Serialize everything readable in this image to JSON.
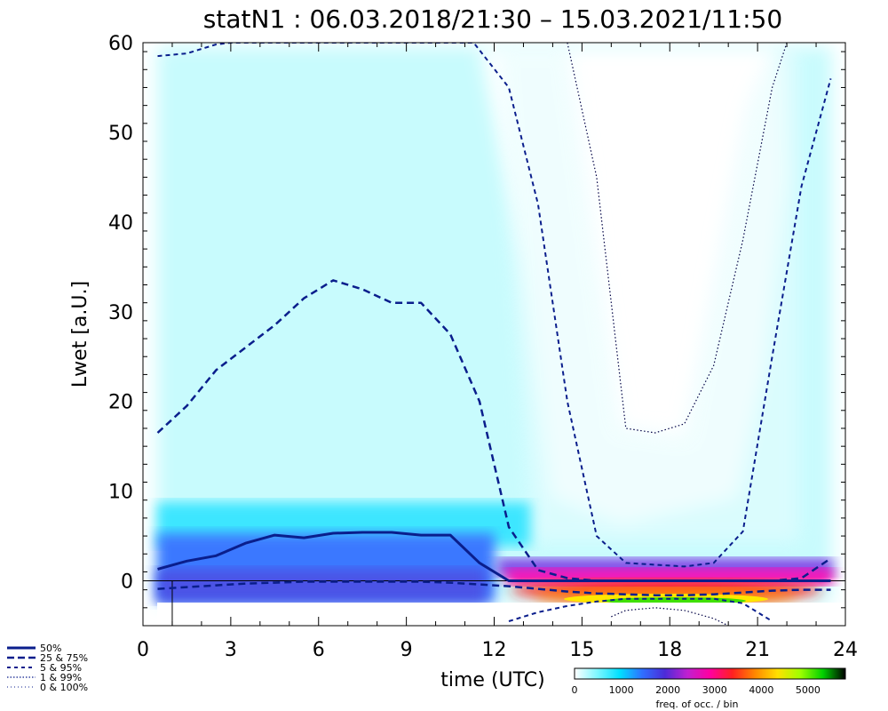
{
  "chart_data": {
    "type": "heatmap",
    "title": "statN1 : 06.03.2018/21:30 – 15.03.2021/11:50",
    "xlabel": "time (UTC)",
    "ylabel": "Lwet [a.U.]",
    "xlim": [
      0,
      24
    ],
    "ylim": [
      -5,
      60
    ],
    "x_ticks": [
      "0",
      "3",
      "6",
      "9",
      "12",
      "15",
      "18",
      "21",
      "24"
    ],
    "y_ticks": [
      "0",
      "10",
      "20",
      "30",
      "40",
      "50",
      "60"
    ],
    "colorbar": {
      "label": "freq. of occ. / bin",
      "ticks": [
        "0",
        "1000",
        "2000",
        "3000",
        "4000",
        "5000"
      ],
      "range": [
        0,
        5800
      ],
      "colors": [
        "#ffffff",
        "#7ff7ff",
        "#00e0ff",
        "#2f6fff",
        "#4b2bd8",
        "#c020d0",
        "#ff00a0",
        "#ff2020",
        "#ff8800",
        "#ffe000",
        "#a0ff00",
        "#00d000",
        "#000000"
      ]
    },
    "legend": {
      "placement": "bottom-left",
      "entries": [
        "50%",
        "25 &  75%",
        " 5 &  95%",
        " 1 &  99%",
        " 0 & 100%"
      ]
    },
    "series": [
      {
        "name": "50%",
        "x": [
          0.5,
          1.5,
          2.5,
          3.5,
          4.5,
          5.5,
          6.5,
          7.5,
          8.5,
          9.5,
          10.5,
          11.5,
          12.5,
          13.5,
          14.5,
          15.5,
          16.5,
          17.5,
          18.5,
          19.5,
          20.5,
          21.5,
          22.5,
          23.5
        ],
        "values": [
          1.3,
          2.2,
          2.8,
          4.2,
          5.1,
          4.8,
          5.3,
          5.4,
          5.4,
          5.1,
          5.1,
          2.0,
          0.0,
          0.0,
          0.0,
          0.0,
          0.0,
          0.0,
          0.0,
          0.0,
          0.0,
          0.0,
          0.0,
          0.0
        ]
      },
      {
        "name": "25%",
        "x": [
          0.5,
          1.5,
          2.5,
          3.5,
          4.5,
          5.5,
          6.5,
          7.5,
          8.5,
          9.5,
          10.5,
          11.5,
          12.5,
          13.5,
          14.5,
          15.5,
          16.5,
          17.5,
          18.5,
          19.5,
          20.5,
          21.5,
          22.5,
          23.5
        ],
        "values": [
          -0.9,
          -0.7,
          -0.5,
          -0.3,
          -0.2,
          -0.1,
          -0.1,
          -0.1,
          -0.1,
          -0.1,
          -0.2,
          -0.4,
          -0.6,
          -0.9,
          -1.2,
          -1.4,
          -1.5,
          -1.6,
          -1.6,
          -1.5,
          -1.3,
          -1.1,
          -1.0,
          -1.0
        ]
      },
      {
        "name": "75%",
        "x": [
          0.5,
          1.5,
          2.5,
          3.5,
          4.5,
          5.5,
          6.5,
          7.5,
          8.5,
          9.5,
          10.5,
          11.5,
          12.5,
          13.5,
          14.5,
          15.5,
          16.5,
          17.5,
          18.5,
          19.5,
          20.5,
          21.5,
          22.5,
          23.5
        ],
        "values": [
          16.5,
          19.5,
          23.5,
          26.0,
          28.5,
          31.5,
          33.5,
          32.5,
          31.0,
          31.0,
          27.5,
          20.0,
          6.0,
          1.2,
          0.3,
          0.0,
          0.0,
          0.0,
          0.0,
          0.0,
          0.0,
          0.0,
          0.3,
          2.5
        ]
      },
      {
        "name": "5%",
        "x": [
          12.5,
          13.5,
          14.5,
          15.5,
          16.5,
          17.5,
          18.5,
          19.5,
          20.5,
          21.5
        ],
        "values": [
          -4.5,
          -3.5,
          -2.8,
          -2.3,
          -2.0,
          -2.0,
          -2.0,
          -2.0,
          -2.5,
          -4.5
        ]
      },
      {
        "name": "95%",
        "x": [
          0.5,
          1.5,
          2.5,
          3.0,
          11.3,
          12.5,
          13.5,
          14.5,
          15.5,
          16.5,
          17.5,
          18.5,
          19.5,
          20.5,
          21.5,
          22.5,
          23.5
        ],
        "values": [
          58.5,
          58.8,
          59.8,
          60.0,
          60.0,
          55.0,
          42.0,
          20.0,
          5.0,
          2.0,
          1.8,
          1.6,
          2.0,
          5.5,
          25.0,
          44.0,
          56.0
        ]
      },
      {
        "name": "1%",
        "x": [
          16.0,
          16.5,
          17.5,
          18.5,
          19.5,
          20.0
        ],
        "values": [
          -4.0,
          -3.3,
          -3.0,
          -3.3,
          -4.2,
          -5.0
        ]
      },
      {
        "name": "99%",
        "x": [
          14.5,
          15.5,
          16.5,
          17.5,
          18.5,
          19.5,
          20.5,
          21.5,
          22.0
        ],
        "values": [
          60.0,
          45.0,
          17.0,
          16.5,
          17.5,
          24.0,
          38.0,
          55.0,
          60.0
        ]
      }
    ]
  }
}
